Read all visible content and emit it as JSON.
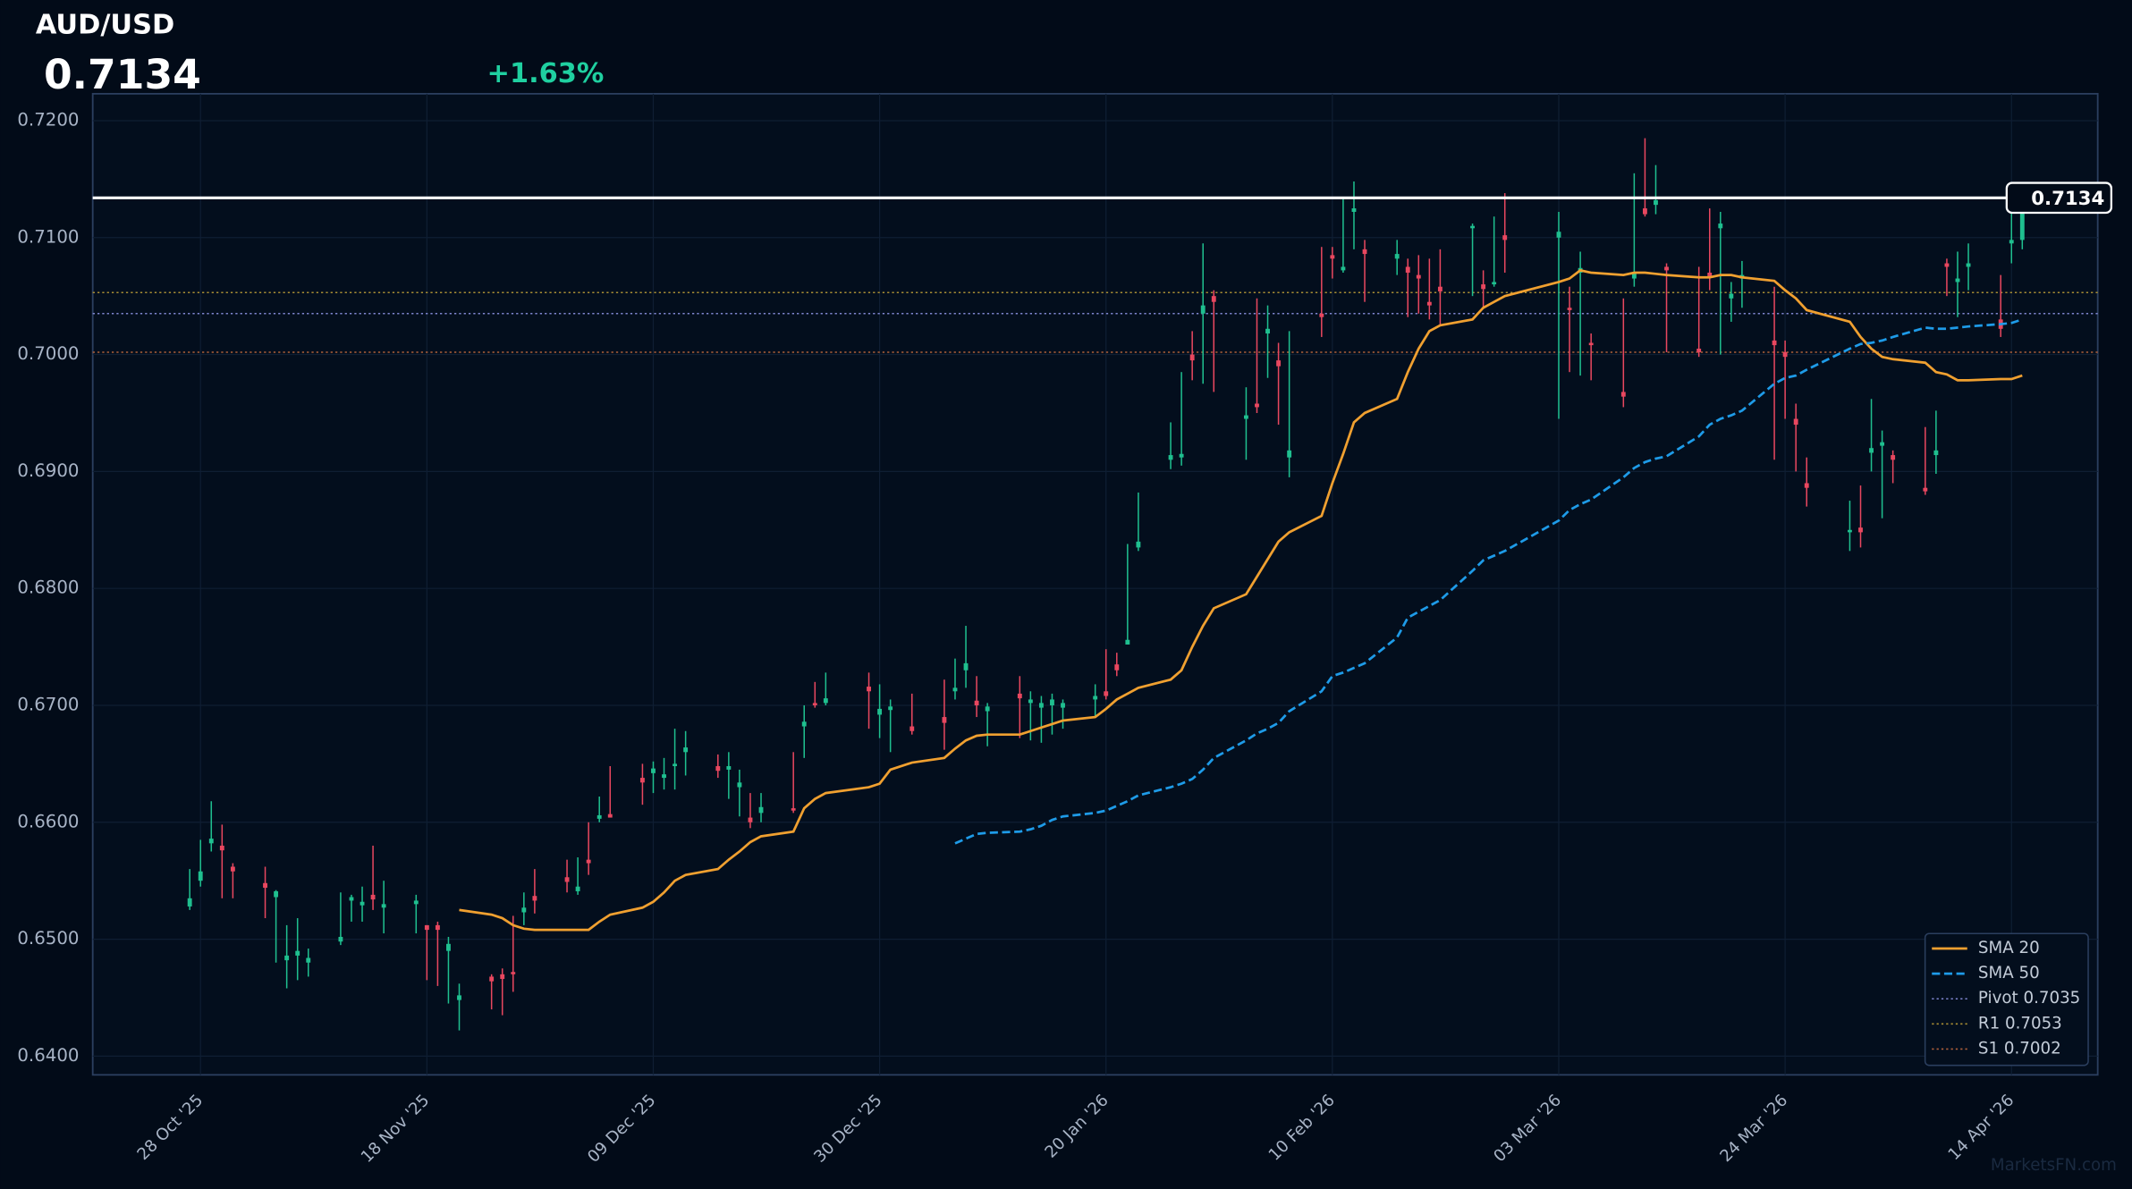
{
  "chart_data": {
    "type": "candlestick",
    "title": "AUD/USD",
    "current": {
      "value": 0.7134,
      "label": "0.7134"
    },
    "change": {
      "value": 1.63,
      "label": "+1.63%"
    },
    "watermark": "MarketsFN.com",
    "up_color": "#1fbf8f",
    "down_color": "#e8475f",
    "grid": true,
    "legend": "lower right",
    "xlim": [
      "2025-10-18",
      "2026-04-22"
    ],
    "ylim": [
      0.6384,
      0.7223
    ],
    "yticks": [
      {
        "value": 0.64,
        "label": "0.6400"
      },
      {
        "value": 0.65,
        "label": "0.6500"
      },
      {
        "value": 0.66,
        "label": "0.6600"
      },
      {
        "value": 0.67,
        "label": "0.6700"
      },
      {
        "value": 0.68,
        "label": "0.6800"
      },
      {
        "value": 0.69,
        "label": "0.6900"
      },
      {
        "value": 0.7,
        "label": "0.7000"
      },
      {
        "value": 0.71,
        "label": "0.7100"
      },
      {
        "value": 0.72,
        "label": "0.7200"
      }
    ],
    "xticks": [
      {
        "value": "2025-10-28",
        "label": "28 Oct '25"
      },
      {
        "value": "2025-11-18",
        "label": "18 Nov '25"
      },
      {
        "value": "2025-12-09",
        "label": "09 Dec '25"
      },
      {
        "value": "2025-12-30",
        "label": "30 Dec '25"
      },
      {
        "value": "2026-01-20",
        "label": "20 Jan '26"
      },
      {
        "value": "2026-02-10",
        "label": "10 Feb '26"
      },
      {
        "value": "2026-03-03",
        "label": "03 Mar '26"
      },
      {
        "value": "2026-03-24",
        "label": "24 Mar '26"
      },
      {
        "value": "2026-04-14",
        "label": "14 Apr '26"
      }
    ],
    "x": [
      "2025-10-27",
      "2025-10-28",
      "2025-10-29",
      "2025-10-30",
      "2025-10-31",
      "2025-11-03",
      "2025-11-04",
      "2025-11-05",
      "2025-11-06",
      "2025-11-07",
      "2025-11-10",
      "2025-11-11",
      "2025-11-12",
      "2025-11-13",
      "2025-11-14",
      "2025-11-17",
      "2025-11-18",
      "2025-11-19",
      "2025-11-20",
      "2025-11-21",
      "2025-11-24",
      "2025-11-25",
      "2025-11-26",
      "2025-11-27",
      "2025-11-28",
      "2025-12-01",
      "2025-12-02",
      "2025-12-03",
      "2025-12-04",
      "2025-12-05",
      "2025-12-08",
      "2025-12-09",
      "2025-12-10",
      "2025-12-11",
      "2025-12-12",
      "2025-12-15",
      "2025-12-16",
      "2025-12-17",
      "2025-12-18",
      "2025-12-19",
      "2025-12-22",
      "2025-12-23",
      "2025-12-24",
      "2025-12-25",
      "2025-12-29",
      "2025-12-30",
      "2025-12-31",
      "2026-01-02",
      "2026-01-05",
      "2026-01-06",
      "2026-01-07",
      "2026-01-08",
      "2026-01-09",
      "2026-01-12",
      "2026-01-13",
      "2026-01-14",
      "2026-01-15",
      "2026-01-16",
      "2026-01-19",
      "2026-01-20",
      "2026-01-21",
      "2026-01-22",
      "2026-01-23",
      "2026-01-26",
      "2026-01-27",
      "2026-01-28",
      "2026-01-29",
      "2026-01-30",
      "2026-02-02",
      "2026-02-03",
      "2026-02-04",
      "2026-02-05",
      "2026-02-06",
      "2026-02-09",
      "2026-02-10",
      "2026-02-11",
      "2026-02-12",
      "2026-02-13",
      "2026-02-16",
      "2026-02-17",
      "2026-02-18",
      "2026-02-19",
      "2026-02-20",
      "2026-02-23",
      "2026-02-24",
      "2026-02-25",
      "2026-02-26",
      "2026-03-03",
      "2026-03-04",
      "2026-03-05",
      "2026-03-06",
      "2026-03-09",
      "2026-03-10",
      "2026-03-11",
      "2026-03-12",
      "2026-03-13",
      "2026-03-16",
      "2026-03-17",
      "2026-03-18",
      "2026-03-19",
      "2026-03-20",
      "2026-03-23",
      "2026-03-24",
      "2026-03-25",
      "2026-03-26",
      "2026-03-30",
      "2026-03-31",
      "2026-04-01",
      "2026-04-02",
      "2026-04-03",
      "2026-04-06",
      "2026-04-07",
      "2026-04-08",
      "2026-04-09",
      "2026-04-10",
      "2026-04-13",
      "2026-04-14",
      "2026-04-15"
    ],
    "ohlc": [
      [
        0.6528,
        0.656,
        0.6525,
        0.6535
      ],
      [
        0.655,
        0.6585,
        0.6545,
        0.6558
      ],
      [
        0.6582,
        0.6618,
        0.6575,
        0.6586
      ],
      [
        0.658,
        0.6598,
        0.6535,
        0.6576
      ],
      [
        0.6562,
        0.6565,
        0.6535,
        0.6558
      ],
      [
        0.6548,
        0.6562,
        0.6518,
        0.6544
      ],
      [
        0.6536,
        0.6542,
        0.648,
        0.6541
      ],
      [
        0.6482,
        0.6512,
        0.6458,
        0.6486
      ],
      [
        0.6486,
        0.6518,
        0.6465,
        0.649
      ],
      [
        0.648,
        0.6492,
        0.6468,
        0.6484
      ],
      [
        0.6498,
        0.654,
        0.6495,
        0.6502
      ],
      [
        0.6533,
        0.6538,
        0.6515,
        0.6536
      ],
      [
        0.6529,
        0.6545,
        0.6515,
        0.6532
      ],
      [
        0.6538,
        0.658,
        0.6525,
        0.6534
      ],
      [
        0.6527,
        0.655,
        0.6505,
        0.653
      ],
      [
        0.653,
        0.6538,
        0.6505,
        0.6533
      ],
      [
        0.6512,
        0.6512,
        0.6465,
        0.6508
      ],
      [
        0.6512,
        0.6515,
        0.646,
        0.6508
      ],
      [
        0.649,
        0.6502,
        0.6445,
        0.6496
      ],
      [
        0.6448,
        0.6462,
        0.6422,
        0.6452
      ],
      [
        0.6468,
        0.647,
        0.644,
        0.6464
      ],
      [
        0.647,
        0.6475,
        0.6435,
        0.6466
      ],
      [
        0.6472,
        0.652,
        0.6455,
        0.647
      ],
      [
        0.6523,
        0.654,
        0.6512,
        0.6527
      ],
      [
        0.6537,
        0.656,
        0.6522,
        0.6533
      ],
      [
        0.6553,
        0.6568,
        0.654,
        0.6549
      ],
      [
        0.6541,
        0.657,
        0.6538,
        0.6545
      ],
      [
        0.6568,
        0.66,
        0.6555,
        0.6565
      ],
      [
        0.6603,
        0.6622,
        0.66,
        0.6606
      ],
      [
        0.6607,
        0.6648,
        0.6605,
        0.6604
      ],
      [
        0.6638,
        0.665,
        0.6615,
        0.6634
      ],
      [
        0.6642,
        0.6652,
        0.6625,
        0.6646
      ],
      [
        0.6638,
        0.6655,
        0.6628,
        0.6641
      ],
      [
        0.6648,
        0.668,
        0.6628,
        0.665
      ],
      [
        0.666,
        0.6678,
        0.664,
        0.6664
      ],
      [
        0.6648,
        0.6658,
        0.6638,
        0.6644
      ],
      [
        0.6645,
        0.666,
        0.662,
        0.6648
      ],
      [
        0.663,
        0.6645,
        0.6605,
        0.6634
      ],
      [
        0.6604,
        0.6625,
        0.6595,
        0.66
      ],
      [
        0.6608,
        0.6625,
        0.66,
        0.6613
      ],
      [
        0.6612,
        0.666,
        0.6608,
        0.661
      ],
      [
        0.6682,
        0.67,
        0.6655,
        0.6686
      ],
      [
        0.6702,
        0.672,
        0.6698,
        0.67
      ],
      [
        0.6702,
        0.6728,
        0.67,
        0.6706
      ],
      [
        0.6716,
        0.6728,
        0.668,
        0.6712
      ],
      [
        0.6692,
        0.6718,
        0.6672,
        0.6697
      ],
      [
        0.6696,
        0.6705,
        0.666,
        0.6699
      ],
      [
        0.6682,
        0.671,
        0.6675,
        0.6678
      ],
      [
        0.669,
        0.6722,
        0.6662,
        0.6685
      ],
      [
        0.6712,
        0.674,
        0.6705,
        0.6715
      ],
      [
        0.673,
        0.6768,
        0.6715,
        0.6736
      ],
      [
        0.6704,
        0.6725,
        0.669,
        0.67
      ],
      [
        0.6695,
        0.6702,
        0.6665,
        0.6699
      ],
      [
        0.671,
        0.6725,
        0.6672,
        0.6706
      ],
      [
        0.6702,
        0.6712,
        0.667,
        0.6705
      ],
      [
        0.6698,
        0.6708,
        0.6668,
        0.6702
      ],
      [
        0.67,
        0.671,
        0.6675,
        0.6705
      ],
      [
        0.6698,
        0.6705,
        0.668,
        0.6702
      ],
      [
        0.6705,
        0.6718,
        0.669,
        0.6708
      ],
      [
        0.6712,
        0.6748,
        0.6705,
        0.6708
      ],
      [
        0.6735,
        0.6745,
        0.6725,
        0.673
      ],
      [
        0.6752,
        0.6838,
        0.6752,
        0.6756
      ],
      [
        0.6835,
        0.6882,
        0.6832,
        0.684
      ],
      [
        0.691,
        0.6942,
        0.6902,
        0.6914
      ],
      [
        0.6912,
        0.6985,
        0.6905,
        0.6915
      ],
      [
        0.7,
        0.702,
        0.6978,
        0.6995
      ],
      [
        0.7035,
        0.7095,
        0.6975,
        0.7042
      ],
      [
        0.705,
        0.7055,
        0.6968,
        0.7045
      ],
      [
        0.6945,
        0.6972,
        0.691,
        0.6948
      ],
      [
        0.6958,
        0.7048,
        0.695,
        0.6955
      ],
      [
        0.7018,
        0.7042,
        0.698,
        0.7022
      ],
      [
        0.6995,
        0.701,
        0.694,
        0.699
      ],
      [
        0.6912,
        0.702,
        0.6895,
        0.6918
      ],
      [
        0.7035,
        0.7092,
        0.7015,
        0.7032
      ],
      [
        0.7085,
        0.7092,
        0.7065,
        0.7082
      ],
      [
        0.7072,
        0.7135,
        0.707,
        0.7075
      ],
      [
        0.7122,
        0.7148,
        0.709,
        0.7125
      ],
      [
        0.709,
        0.7098,
        0.7045,
        0.7086
      ],
      [
        0.7082,
        0.7098,
        0.7068,
        0.7086
      ],
      [
        0.7075,
        0.7082,
        0.7032,
        0.707
      ],
      [
        0.7068,
        0.7085,
        0.7035,
        0.7065
      ],
      [
        0.7045,
        0.7082,
        0.703,
        0.7042
      ],
      [
        0.7058,
        0.709,
        0.7025,
        0.7054
      ],
      [
        0.7108,
        0.7112,
        0.705,
        0.711
      ],
      [
        0.706,
        0.7072,
        0.704,
        0.7056
      ],
      [
        0.706,
        0.7118,
        0.7058,
        0.7062
      ],
      [
        0.7102,
        0.7138,
        0.707,
        0.7098
      ],
      [
        0.71,
        0.7122,
        0.6945,
        0.7105
      ],
      [
        0.704,
        0.7058,
        0.6985,
        0.7038
      ],
      [
        0.707,
        0.7088,
        0.6982,
        0.7074
      ],
      [
        0.701,
        0.7018,
        0.6978,
        0.7008
      ],
      [
        0.6968,
        0.7048,
        0.6955,
        0.6964
      ],
      [
        0.7065,
        0.7155,
        0.7058,
        0.707
      ],
      [
        0.7125,
        0.7185,
        0.7118,
        0.712
      ],
      [
        0.7128,
        0.7162,
        0.712,
        0.7132
      ],
      [
        0.7075,
        0.7078,
        0.7002,
        0.7072
      ],
      [
        0.7005,
        0.7075,
        0.6998,
        0.7002
      ],
      [
        0.707,
        0.7125,
        0.7055,
        0.7066
      ],
      [
        0.7108,
        0.7122,
        0.7,
        0.7112
      ],
      [
        0.7048,
        0.7062,
        0.7028,
        0.7052
      ],
      [
        0.7065,
        0.708,
        0.704,
        0.7068
      ],
      [
        0.7012,
        0.7058,
        0.691,
        0.7008
      ],
      [
        0.7002,
        0.7012,
        0.6945,
        0.6998
      ],
      [
        0.6945,
        0.6958,
        0.69,
        0.694
      ],
      [
        0.689,
        0.6912,
        0.687,
        0.6886
      ],
      [
        0.6848,
        0.6875,
        0.6832,
        0.685
      ],
      [
        0.6852,
        0.6888,
        0.6835,
        0.6848
      ],
      [
        0.6916,
        0.6962,
        0.69,
        0.692
      ],
      [
        0.6922,
        0.6935,
        0.686,
        0.6925
      ],
      [
        0.6914,
        0.6918,
        0.689,
        0.691
      ],
      [
        0.6886,
        0.6938,
        0.688,
        0.6883
      ],
      [
        0.6914,
        0.6952,
        0.6898,
        0.6918
      ],
      [
        0.7078,
        0.7082,
        0.705,
        0.7075
      ],
      [
        0.7062,
        0.7088,
        0.7032,
        0.7065
      ],
      [
        0.7075,
        0.7095,
        0.7055,
        0.7078
      ],
      [
        0.703,
        0.7068,
        0.7015,
        0.7022
      ],
      [
        0.7095,
        0.7125,
        0.7078,
        0.7098
      ],
      [
        0.7098,
        0.7135,
        0.709,
        0.7134
      ]
    ],
    "series": [
      {
        "name": "SMA 20",
        "color": "#f0a030",
        "dash": false,
        "values": [
          null,
          null,
          null,
          null,
          null,
          null,
          null,
          null,
          null,
          null,
          null,
          null,
          null,
          null,
          null,
          null,
          null,
          null,
          null,
          0.6525,
          0.6521,
          0.6518,
          0.6512,
          0.6509,
          0.6508,
          0.6508,
          0.6508,
          0.6508,
          0.6515,
          0.6521,
          0.6527,
          0.6532,
          0.654,
          0.655,
          0.6555,
          0.656,
          0.6568,
          0.6575,
          0.6583,
          0.6588,
          0.6592,
          0.6612,
          0.662,
          0.6625,
          0.663,
          0.6633,
          0.6645,
          0.6651,
          0.6655,
          0.6663,
          0.667,
          0.6674,
          0.6675,
          0.6675,
          0.6678,
          0.6681,
          0.6684,
          0.6687,
          0.669,
          0.6697,
          0.6705,
          0.671,
          0.6715,
          0.6722,
          0.673,
          0.675,
          0.6768,
          0.6783,
          0.6795,
          0.681,
          0.6825,
          0.684,
          0.6848,
          0.6862,
          0.689,
          0.6915,
          0.6942,
          0.695,
          0.6962,
          0.6985,
          0.7005,
          0.702,
          0.7025,
          0.703,
          0.704,
          0.7045,
          0.705,
          0.7062,
          0.7065,
          0.7072,
          0.707,
          0.7068,
          0.707,
          0.707,
          0.7069,
          0.7068,
          0.7066,
          0.7066,
          0.7068,
          0.7068,
          0.7066,
          0.7063,
          0.7055,
          0.7048,
          0.7038,
          0.7028,
          0.7015,
          0.7005,
          0.6998,
          0.6996,
          0.6993,
          0.6985,
          0.6983,
          0.6978,
          0.6978,
          0.6979,
          0.6979,
          0.6982
        ]
      },
      {
        "name": "SMA 50",
        "color": "#1e9be8",
        "dash": true,
        "values": [
          null,
          null,
          null,
          null,
          null,
          null,
          null,
          null,
          null,
          null,
          null,
          null,
          null,
          null,
          null,
          null,
          null,
          null,
          null,
          null,
          null,
          null,
          null,
          null,
          null,
          null,
          null,
          null,
          null,
          null,
          null,
          null,
          null,
          null,
          null,
          null,
          null,
          null,
          null,
          null,
          null,
          null,
          null,
          null,
          null,
          null,
          null,
          null,
          null,
          0.6582,
          0.6586,
          0.659,
          0.6591,
          0.6592,
          0.6594,
          0.6597,
          0.6602,
          0.6605,
          0.6608,
          0.661,
          0.6614,
          0.6618,
          0.6623,
          0.663,
          0.6633,
          0.6637,
          0.6645,
          0.6655,
          0.667,
          0.6676,
          0.668,
          0.6685,
          0.6695,
          0.6712,
          0.6725,
          0.6728,
          0.6732,
          0.6736,
          0.6758,
          0.6775,
          0.678,
          0.6785,
          0.679,
          0.6815,
          0.6824,
          0.6828,
          0.6832,
          0.6858,
          0.6867,
          0.6872,
          0.6876,
          0.6895,
          0.6903,
          0.6908,
          0.6911,
          0.6913,
          0.693,
          0.694,
          0.6945,
          0.6948,
          0.6952,
          0.6975,
          0.698,
          0.6982,
          0.6987,
          0.7005,
          0.7009,
          0.701,
          0.7012,
          0.7015,
          0.7023,
          0.7022,
          0.7022,
          0.7023,
          0.7024,
          0.7026,
          0.7027,
          0.703
        ]
      }
    ],
    "levels": [
      {
        "name": "Pivot 0.7035",
        "value": 0.7035,
        "color": "#7f86d0"
      },
      {
        "name": "R1 0.7053",
        "value": 0.7053,
        "color": "#a88d34"
      },
      {
        "name": "S1 0.7002",
        "value": 0.7002,
        "color": "#b0603a"
      }
    ]
  }
}
